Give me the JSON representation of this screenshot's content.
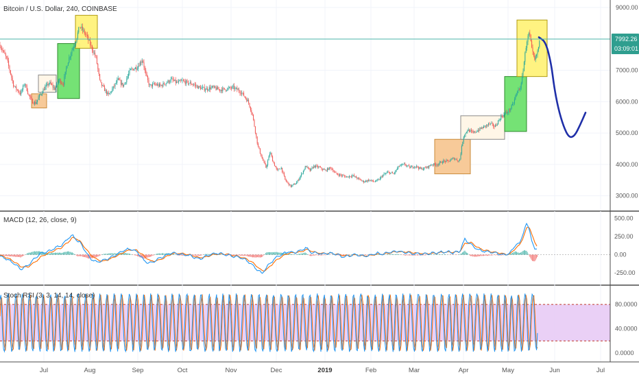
{
  "chart_data": [
    {
      "type": "candlestick",
      "title": "Bitcoin / U.S. Dollar, 240, COINBASE",
      "yticks": [
        "9000.00",
        "8000.00",
        "7000.00",
        "6000.00",
        "5000.00",
        "4000.00",
        "3000.00"
      ],
      "ylim": [
        2600,
        9150
      ],
      "last_price_label": "7992.26",
      "countdown_label": "03:09:01",
      "last_price": 7992.26,
      "x_labels": [
        "Jul",
        "Aug",
        "Sep",
        "Oct",
        "Nov",
        "Dec",
        "2019",
        "Feb",
        "Mar",
        "Apr",
        "May",
        "Jun",
        "Jul"
      ],
      "price_path": [
        [
          0,
          7800
        ],
        [
          10,
          7350
        ],
        [
          20,
          6500
        ],
        [
          30,
          6250
        ],
        [
          36,
          6600
        ],
        [
          42,
          6200
        ],
        [
          47,
          6000
        ],
        [
          52,
          5950
        ],
        [
          58,
          6200
        ],
        [
          64,
          6400
        ],
        [
          72,
          6600
        ],
        [
          80,
          6400
        ],
        [
          86,
          6700
        ],
        [
          92,
          6550
        ],
        [
          98,
          7200
        ],
        [
          104,
          7600
        ],
        [
          110,
          7900
        ],
        [
          116,
          8400
        ],
        [
          120,
          8300
        ],
        [
          126,
          8100
        ],
        [
          132,
          7800
        ],
        [
          140,
          7400
        ],
        [
          146,
          6600
        ],
        [
          152,
          6400
        ],
        [
          158,
          6200
        ],
        [
          164,
          6400
        ],
        [
          172,
          6700
        ],
        [
          180,
          6500
        ],
        [
          190,
          7000
        ],
        [
          200,
          7100
        ],
        [
          208,
          7350
        ],
        [
          212,
          6900
        ],
        [
          218,
          6500
        ],
        [
          226,
          6550
        ],
        [
          234,
          6500
        ],
        [
          242,
          6600
        ],
        [
          250,
          6700
        ],
        [
          258,
          6600
        ],
        [
          266,
          6650
        ],
        [
          274,
          6600
        ],
        [
          282,
          6550
        ],
        [
          290,
          6450
        ],
        [
          300,
          6400
        ],
        [
          310,
          6450
        ],
        [
          320,
          6380
        ],
        [
          330,
          6400
        ],
        [
          340,
          6450
        ],
        [
          352,
          6300
        ],
        [
          362,
          6000
        ],
        [
          368,
          5600
        ],
        [
          372,
          5100
        ],
        [
          376,
          4600
        ],
        [
          382,
          4200
        ],
        [
          388,
          3900
        ],
        [
          394,
          4400
        ],
        [
          398,
          4100
        ],
        [
          404,
          3800
        ],
        [
          410,
          3900
        ],
        [
          416,
          3500
        ],
        [
          424,
          3300
        ],
        [
          432,
          3400
        ],
        [
          440,
          3700
        ],
        [
          446,
          3950
        ],
        [
          452,
          3800
        ],
        [
          458,
          3950
        ],
        [
          466,
          3900
        ],
        [
          474,
          3800
        ],
        [
          482,
          3900
        ],
        [
          490,
          3700
        ],
        [
          498,
          3650
        ],
        [
          506,
          3600
        ],
        [
          514,
          3650
        ],
        [
          522,
          3550
        ],
        [
          530,
          3450
        ],
        [
          538,
          3500
        ],
        [
          546,
          3450
        ],
        [
          552,
          3500
        ],
        [
          558,
          3650
        ],
        [
          566,
          3750
        ],
        [
          574,
          3700
        ],
        [
          582,
          3950
        ],
        [
          590,
          4000
        ],
        [
          598,
          3900
        ],
        [
          606,
          3950
        ],
        [
          614,
          3850
        ],
        [
          622,
          3900
        ],
        [
          630,
          4000
        ],
        [
          638,
          4000
        ],
        [
          646,
          4100
        ],
        [
          654,
          4100
        ],
        [
          662,
          4200
        ],
        [
          670,
          4100
        ],
        [
          676,
          4900
        ],
        [
          682,
          5100
        ],
        [
          690,
          5000
        ],
        [
          698,
          5100
        ],
        [
          706,
          5200
        ],
        [
          714,
          5300
        ],
        [
          722,
          5200
        ],
        [
          730,
          5500
        ],
        [
          736,
          5600
        ],
        [
          742,
          5700
        ],
        [
          748,
          5900
        ],
        [
          754,
          6300
        ],
        [
          760,
          6500
        ],
        [
          764,
          7200
        ],
        [
          768,
          7900
        ],
        [
          772,
          8200
        ],
        [
          776,
          7600
        ],
        [
          780,
          7300
        ],
        [
          784,
          7600
        ],
        [
          788,
          7990
        ]
      ],
      "boxes": [
        {
          "t0": 46,
          "t1": 68,
          "lo": 5800,
          "hi": 6250,
          "fill": "#f7c793",
          "stroke": "#c98a3a"
        },
        {
          "t0": 56,
          "t1": 82,
          "lo": 6300,
          "hi": 6850,
          "fill": "#fff6e6",
          "stroke": "#888888"
        },
        {
          "t0": 84,
          "t1": 116,
          "lo": 6100,
          "hi": 7850,
          "fill": "#6ee06e",
          "stroke": "#2e8b2e"
        },
        {
          "t0": 110,
          "t1": 142,
          "lo": 7700,
          "hi": 8750,
          "fill": "#fff27a",
          "stroke": "#b09a10"
        },
        {
          "t0": 634,
          "t1": 686,
          "lo": 3700,
          "hi": 4800,
          "fill": "#f7c793",
          "stroke": "#c98a3a"
        },
        {
          "t0": 672,
          "t1": 736,
          "lo": 4800,
          "hi": 5550,
          "fill": "#fff6e6",
          "stroke": "#888888"
        },
        {
          "t0": 736,
          "t1": 768,
          "lo": 5050,
          "hi": 6800,
          "fill": "#6ee06e",
          "stroke": "#2e8b2e"
        },
        {
          "t0": 754,
          "t1": 798,
          "lo": 6800,
          "hi": 8600,
          "fill": "#fff27a",
          "stroke": "#b09a10"
        }
      ],
      "projection": {
        "color": "#1f2fa8",
        "points": [
          [
            786,
            8050
          ],
          [
            796,
            7900
          ],
          [
            804,
            7200
          ],
          [
            808,
            6500
          ],
          [
            814,
            5800
          ],
          [
            822,
            5200
          ],
          [
            830,
            4850
          ],
          [
            838,
            4900
          ],
          [
            846,
            5250
          ],
          [
            854,
            5650
          ]
        ]
      }
    },
    {
      "type": "line",
      "title": "MACD (12, 26, close, 9)",
      "yticks": [
        "500.00",
        "250.00",
        "0.00",
        "-250.00"
      ],
      "ylim": [
        -380,
        560
      ],
      "macd_path": [
        [
          0,
          -20
        ],
        [
          10,
          -60
        ],
        [
          20,
          -120
        ],
        [
          30,
          -200
        ],
        [
          40,
          -150
        ],
        [
          50,
          -60
        ],
        [
          60,
          20
        ],
        [
          70,
          40
        ],
        [
          80,
          90
        ],
        [
          90,
          130
        ],
        [
          100,
          230
        ],
        [
          106,
          260
        ],
        [
          112,
          200
        ],
        [
          118,
          150
        ],
        [
          124,
          60
        ],
        [
          130,
          -40
        ],
        [
          140,
          -100
        ],
        [
          150,
          -80
        ],
        [
          160,
          -40
        ],
        [
          170,
          0
        ],
        [
          180,
          60
        ],
        [
          190,
          80
        ],
        [
          200,
          40
        ],
        [
          210,
          -80
        ],
        [
          220,
          -120
        ],
        [
          230,
          -60
        ],
        [
          240,
          -20
        ],
        [
          250,
          30
        ],
        [
          260,
          10
        ],
        [
          270,
          0
        ],
        [
          280,
          -20
        ],
        [
          290,
          -60
        ],
        [
          300,
          -20
        ],
        [
          310,
          10
        ],
        [
          320,
          20
        ],
        [
          330,
          0
        ],
        [
          340,
          -20
        ],
        [
          350,
          -40
        ],
        [
          360,
          -80
        ],
        [
          370,
          -160
        ],
        [
          376,
          -210
        ],
        [
          382,
          -260
        ],
        [
          388,
          -180
        ],
        [
          394,
          -120
        ],
        [
          400,
          -60
        ],
        [
          410,
          0
        ],
        [
          420,
          40
        ],
        [
          430,
          30
        ],
        [
          440,
          60
        ],
        [
          446,
          100
        ],
        [
          452,
          40
        ],
        [
          460,
          20
        ],
        [
          470,
          10
        ],
        [
          480,
          20
        ],
        [
          490,
          10
        ],
        [
          500,
          -30
        ],
        [
          510,
          -10
        ],
        [
          520,
          0
        ],
        [
          530,
          -20
        ],
        [
          540,
          -10
        ],
        [
          550,
          20
        ],
        [
          560,
          10
        ],
        [
          570,
          40
        ],
        [
          580,
          50
        ],
        [
          590,
          30
        ],
        [
          600,
          20
        ],
        [
          610,
          10
        ],
        [
          620,
          10
        ],
        [
          630,
          20
        ],
        [
          640,
          30
        ],
        [
          650,
          40
        ],
        [
          660,
          30
        ],
        [
          670,
          40
        ],
        [
          678,
          210
        ],
        [
          686,
          150
        ],
        [
          694,
          90
        ],
        [
          700,
          60
        ],
        [
          710,
          40
        ],
        [
          720,
          30
        ],
        [
          730,
          10
        ],
        [
          736,
          0
        ],
        [
          744,
          20
        ],
        [
          752,
          140
        ],
        [
          758,
          150
        ],
        [
          764,
          330
        ],
        [
          768,
          420
        ],
        [
          772,
          360
        ],
        [
          776,
          180
        ],
        [
          780,
          60
        ],
        [
          784,
          80
        ]
      ],
      "signal_path": [
        [
          0,
          -10
        ],
        [
          10,
          -40
        ],
        [
          20,
          -90
        ],
        [
          30,
          -160
        ],
        [
          40,
          -170
        ],
        [
          50,
          -110
        ],
        [
          60,
          -30
        ],
        [
          70,
          20
        ],
        [
          80,
          60
        ],
        [
          90,
          100
        ],
        [
          100,
          180
        ],
        [
          106,
          230
        ],
        [
          112,
          220
        ],
        [
          118,
          170
        ],
        [
          124,
          100
        ],
        [
          130,
          20
        ],
        [
          140,
          -60
        ],
        [
          150,
          -90
        ],
        [
          160,
          -60
        ],
        [
          170,
          -20
        ],
        [
          180,
          30
        ],
        [
          190,
          70
        ],
        [
          200,
          60
        ],
        [
          210,
          -20
        ],
        [
          220,
          -90
        ],
        [
          230,
          -80
        ],
        [
          240,
          -40
        ],
        [
          250,
          10
        ],
        [
          260,
          20
        ],
        [
          270,
          10
        ],
        [
          280,
          -10
        ],
        [
          290,
          -40
        ],
        [
          300,
          -30
        ],
        [
          310,
          0
        ],
        [
          320,
          10
        ],
        [
          330,
          10
        ],
        [
          340,
          -10
        ],
        [
          350,
          -30
        ],
        [
          360,
          -60
        ],
        [
          370,
          -120
        ],
        [
          376,
          -170
        ],
        [
          382,
          -220
        ],
        [
          388,
          -210
        ],
        [
          394,
          -160
        ],
        [
          400,
          -100
        ],
        [
          410,
          -30
        ],
        [
          420,
          20
        ],
        [
          430,
          30
        ],
        [
          440,
          40
        ],
        [
          446,
          70
        ],
        [
          452,
          60
        ],
        [
          460,
          30
        ],
        [
          470,
          20
        ],
        [
          480,
          20
        ],
        [
          490,
          10
        ],
        [
          500,
          -10
        ],
        [
          510,
          -10
        ],
        [
          520,
          -5
        ],
        [
          530,
          -15
        ],
        [
          540,
          -10
        ],
        [
          550,
          10
        ],
        [
          560,
          10
        ],
        [
          570,
          30
        ],
        [
          580,
          40
        ],
        [
          590,
          40
        ],
        [
          600,
          30
        ],
        [
          610,
          20
        ],
        [
          620,
          15
        ],
        [
          630,
          15
        ],
        [
          640,
          25
        ],
        [
          650,
          35
        ],
        [
          660,
          35
        ],
        [
          670,
          38
        ],
        [
          678,
          150
        ],
        [
          686,
          170
        ],
        [
          694,
          120
        ],
        [
          700,
          80
        ],
        [
          710,
          55
        ],
        [
          720,
          35
        ],
        [
          730,
          20
        ],
        [
          736,
          5
        ],
        [
          744,
          10
        ],
        [
          752,
          90
        ],
        [
          758,
          130
        ],
        [
          764,
          260
        ],
        [
          768,
          360
        ],
        [
          772,
          380
        ],
        [
          776,
          280
        ],
        [
          780,
          160
        ],
        [
          784,
          110
        ]
      ],
      "histogram_hint": [
        [
          370,
          -60
        ],
        [
          376,
          -40
        ],
        [
          382,
          -50
        ],
        [
          680,
          60
        ],
        [
          690,
          -20
        ],
        [
          776,
          -130
        ],
        [
          780,
          -80
        ]
      ]
    },
    {
      "type": "line",
      "title": "Stoch RSI (3, 3, 14, 14, close)",
      "yticks": [
        "80.0000",
        "40.0000",
        "0.0000"
      ],
      "ylim": [
        -10,
        105
      ],
      "upper_band": 80,
      "lower_band": 20
    }
  ],
  "colors": {
    "up": "#26a69a",
    "down": "#ef5350",
    "last_price_bg": "#2f9e8f",
    "band_fill": "#e6c8f5",
    "macd_line": "#2196f3",
    "signal_line": "#ff6d00",
    "rsi_k": "#2196f3",
    "rsi_d": "#ff6d00"
  }
}
